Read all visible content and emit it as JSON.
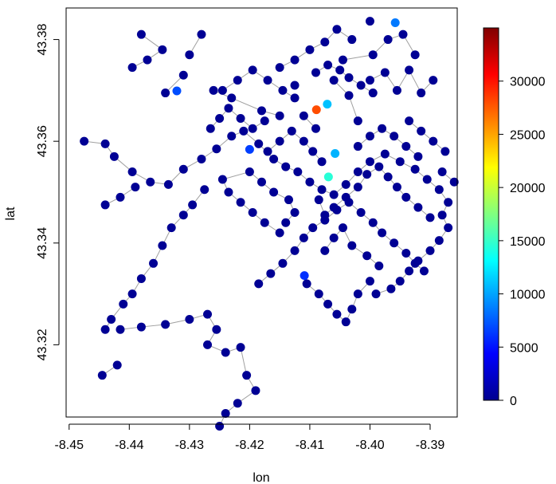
{
  "chart_data": {
    "type": "scatter",
    "title": "",
    "xlabel": "lon",
    "ylabel": "lat",
    "xlim": [
      -8.4505,
      -8.3855
    ],
    "ylim": [
      43.3058,
      43.3862
    ],
    "xticks": [
      -8.45,
      -8.44,
      -8.43,
      -8.42,
      -8.41,
      -8.4,
      -8.39
    ],
    "xtick_labels": [
      "-8.45",
      "-8.44",
      "-8.43",
      "-8.42",
      "-8.41",
      "-8.40",
      "-8.39"
    ],
    "yticks": [
      43.32,
      43.34,
      43.36,
      43.38
    ],
    "ytick_labels": [
      "43.32",
      "43.34",
      "43.36",
      "43.38"
    ],
    "colorbar": {
      "range": [
        0,
        35000
      ],
      "ticks": [
        0,
        5000,
        10000,
        15000,
        20000,
        25000,
        30000
      ],
      "tick_labels": [
        "0",
        "5000",
        "10000",
        "15000",
        "20000",
        "25000",
        "30000"
      ],
      "colors": [
        "#00008F",
        "#0000FF",
        "#0080FF",
        "#00FFFF",
        "#80FF80",
        "#FFFF00",
        "#FF8000",
        "#FF0000",
        "#800000"
      ]
    },
    "highlighted_points": [
      {
        "lon": -8.3958,
        "lat": 43.3833,
        "value": 8500
      },
      {
        "lon": -8.4321,
        "lat": 43.3699,
        "value": 7000
      },
      {
        "lon": -8.4089,
        "lat": 43.3662,
        "value": 28000
      },
      {
        "lon": -8.4071,
        "lat": 43.3673,
        "value": 11000
      },
      {
        "lon": -8.42,
        "lat": 43.3584,
        "value": 6500
      },
      {
        "lon": -8.4058,
        "lat": 43.3576,
        "value": 10500
      },
      {
        "lon": -8.4069,
        "lat": 43.353,
        "value": 14500
      },
      {
        "lon": -8.4109,
        "lat": 43.3336,
        "value": 6000
      }
    ],
    "station_points": [
      [
        -8.4,
        43.3836
      ],
      [
        -8.438,
        43.381
      ],
      [
        -8.4345,
        43.378
      ],
      [
        -8.437,
        43.376
      ],
      [
        -8.4395,
        43.3745
      ],
      [
        -8.431,
        43.373
      ],
      [
        -8.434,
        43.3695
      ],
      [
        -8.428,
        43.381
      ],
      [
        -8.43,
        43.377
      ],
      [
        -8.426,
        43.37
      ],
      [
        -8.423,
        43.3685
      ],
      [
        -8.418,
        43.366
      ],
      [
        -8.415,
        43.365
      ],
      [
        -8.4125,
        43.371
      ],
      [
        -8.411,
        43.365
      ],
      [
        -8.409,
        43.3625
      ],
      [
        -8.406,
        43.372
      ],
      [
        -8.4035,
        43.369
      ],
      [
        -8.402,
        43.364
      ],
      [
        -8.4,
        43.372
      ],
      [
        -8.3975,
        43.3735
      ],
      [
        -8.3955,
        43.37
      ],
      [
        -8.3935,
        43.374
      ],
      [
        -8.3915,
        43.3695
      ],
      [
        -8.3895,
        43.372
      ],
      [
        -8.403,
        43.38
      ],
      [
        -8.4055,
        43.382
      ],
      [
        -8.4075,
        43.3795
      ],
      [
        -8.41,
        43.378
      ],
      [
        -8.4125,
        43.376
      ],
      [
        -8.415,
        43.3745
      ],
      [
        -8.4045,
        43.376
      ],
      [
        -8.3995,
        43.377
      ],
      [
        -8.397,
        43.38
      ],
      [
        -8.3945,
        43.381
      ],
      [
        -8.3925,
        43.377
      ],
      [
        -8.4475,
        43.36
      ],
      [
        -8.444,
        43.3595
      ],
      [
        -8.4425,
        43.357
      ],
      [
        -8.4395,
        43.354
      ],
      [
        -8.4365,
        43.352
      ],
      [
        -8.4335,
        43.3515
      ],
      [
        -8.431,
        43.3545
      ],
      [
        -8.428,
        43.3565
      ],
      [
        -8.4255,
        43.3585
      ],
      [
        -8.423,
        43.361
      ],
      [
        -8.421,
        43.362
      ],
      [
        -8.4185,
        43.3595
      ],
      [
        -8.416,
        43.3565
      ],
      [
        -8.414,
        43.355
      ],
      [
        -8.412,
        43.354
      ],
      [
        -8.41,
        43.352
      ],
      [
        -8.408,
        43.3505
      ],
      [
        -8.406,
        43.3495
      ],
      [
        -8.404,
        43.3515
      ],
      [
        -8.402,
        43.354
      ],
      [
        -8.4,
        43.356
      ],
      [
        -8.3975,
        43.3575
      ],
      [
        -8.395,
        43.356
      ],
      [
        -8.3925,
        43.3545
      ],
      [
        -8.3905,
        43.3525
      ],
      [
        -8.3885,
        43.3505
      ],
      [
        -8.387,
        43.348
      ],
      [
        -8.388,
        43.3455
      ],
      [
        -8.387,
        43.343
      ],
      [
        -8.3885,
        43.3405
      ],
      [
        -8.39,
        43.3385
      ],
      [
        -8.392,
        43.3365
      ],
      [
        -8.3935,
        43.3345
      ],
      [
        -8.395,
        43.3325
      ],
      [
        -8.3965,
        43.331
      ],
      [
        -8.399,
        43.33
      ],
      [
        -8.444,
        43.3475
      ],
      [
        -8.4415,
        43.349
      ],
      [
        -8.439,
        43.351
      ],
      [
        -8.4275,
        43.3505
      ],
      [
        -8.4295,
        43.3475
      ],
      [
        -8.431,
        43.3455
      ],
      [
        -8.433,
        43.343
      ],
      [
        -8.4345,
        43.3395
      ],
      [
        -8.436,
        43.336
      ],
      [
        -8.438,
        43.333
      ],
      [
        -8.4395,
        43.33
      ],
      [
        -8.441,
        43.328
      ],
      [
        -8.443,
        43.325
      ],
      [
        -8.444,
        43.323
      ],
      [
        -8.442,
        43.316
      ],
      [
        -8.4445,
        43.314
      ],
      [
        -8.4415,
        43.323
      ],
      [
        -8.438,
        43.3235
      ],
      [
        -8.434,
        43.324
      ],
      [
        -8.43,
        43.325
      ],
      [
        -8.427,
        43.326
      ],
      [
        -8.4255,
        43.323
      ],
      [
        -8.427,
        43.32
      ],
      [
        -8.424,
        43.3185
      ],
      [
        -8.4215,
        43.3195
      ],
      [
        -8.4205,
        43.314
      ],
      [
        -8.419,
        43.311
      ],
      [
        -8.422,
        43.3085
      ],
      [
        -8.424,
        43.3065
      ],
      [
        -8.425,
        43.304
      ],
      [
        -8.4185,
        43.332
      ],
      [
        -8.4165,
        43.334
      ],
      [
        -8.4145,
        43.336
      ],
      [
        -8.4125,
        43.3385
      ],
      [
        -8.411,
        43.341
      ],
      [
        -8.4095,
        43.343
      ],
      [
        -8.4075,
        43.3445
      ],
      [
        -8.4055,
        43.3465
      ],
      [
        -8.4035,
        43.348
      ],
      [
        -8.4015,
        43.346
      ],
      [
        -8.3995,
        43.344
      ],
      [
        -8.398,
        43.342
      ],
      [
        -8.396,
        43.34
      ],
      [
        -8.394,
        43.338
      ],
      [
        -8.3925,
        43.336
      ],
      [
        -8.391,
        43.3345
      ],
      [
        -8.4105,
        43.332
      ],
      [
        -8.4085,
        43.33
      ],
      [
        -8.407,
        43.328
      ],
      [
        -8.4055,
        43.326
      ],
      [
        -8.404,
        43.3245
      ],
      [
        -8.403,
        43.327
      ],
      [
        -8.402,
        43.33
      ],
      [
        -8.4,
        43.3325
      ],
      [
        -8.4075,
        43.3385
      ],
      [
        -8.406,
        43.341
      ],
      [
        -8.4045,
        43.343
      ],
      [
        -8.403,
        43.3395
      ],
      [
        -8.4005,
        43.3375
      ],
      [
        -8.3985,
        43.3355
      ],
      [
        -8.415,
        43.342
      ],
      [
        -8.4175,
        43.344
      ],
      [
        -8.4195,
        43.346
      ],
      [
        -8.4215,
        43.348
      ],
      [
        -8.4235,
        43.35
      ],
      [
        -8.4245,
        43.3525
      ],
      [
        -8.42,
        43.354
      ],
      [
        -8.418,
        43.352
      ],
      [
        -8.416,
        43.35
      ],
      [
        -8.4135,
        43.3485
      ],
      [
        -8.4125,
        43.346
      ],
      [
        -8.414,
        43.344
      ],
      [
        -8.408,
        43.356
      ],
      [
        -8.4095,
        43.358
      ],
      [
        -8.411,
        43.36
      ],
      [
        -8.413,
        43.362
      ],
      [
        -8.415,
        43.36
      ],
      [
        -8.417,
        43.358
      ],
      [
        -8.402,
        43.359
      ],
      [
        -8.4,
        43.361
      ],
      [
        -8.398,
        43.3625
      ],
      [
        -8.396,
        43.361
      ],
      [
        -8.394,
        43.359
      ],
      [
        -8.392,
        43.357
      ],
      [
        -8.4245,
        43.37
      ],
      [
        -8.422,
        43.372
      ],
      [
        -8.4195,
        43.374
      ],
      [
        -8.417,
        43.372
      ],
      [
        -8.4145,
        43.37
      ],
      [
        -8.4125,
        43.3685
      ],
      [
        -8.39,
        43.345
      ],
      [
        -8.392,
        43.347
      ],
      [
        -8.394,
        43.349
      ],
      [
        -8.3955,
        43.351
      ],
      [
        -8.397,
        43.353
      ],
      [
        -8.3985,
        43.355
      ],
      [
        -8.4005,
        43.3535
      ],
      [
        -8.402,
        43.351
      ],
      [
        -8.404,
        43.349
      ],
      [
        -8.406,
        43.347
      ],
      [
        -8.4075,
        43.3455
      ],
      [
        -8.4085,
        43.3485
      ],
      [
        -8.388,
        43.354
      ],
      [
        -8.386,
        43.352
      ],
      [
        -8.3875,
        43.358
      ],
      [
        -8.3895,
        43.36
      ],
      [
        -8.3915,
        43.362
      ],
      [
        -8.3935,
        43.364
      ],
      [
        -8.4265,
        43.3625
      ],
      [
        -8.425,
        43.3645
      ],
      [
        -8.4235,
        43.3665
      ],
      [
        -8.4215,
        43.3645
      ],
      [
        -8.4195,
        43.3625
      ],
      [
        -8.4175,
        43.364
      ],
      [
        -8.409,
        43.3735
      ],
      [
        -8.407,
        43.375
      ],
      [
        -8.405,
        43.374
      ],
      [
        -8.4035,
        43.3725
      ],
      [
        -8.4015,
        43.371
      ],
      [
        -8.3995,
        43.3695
      ]
    ]
  }
}
